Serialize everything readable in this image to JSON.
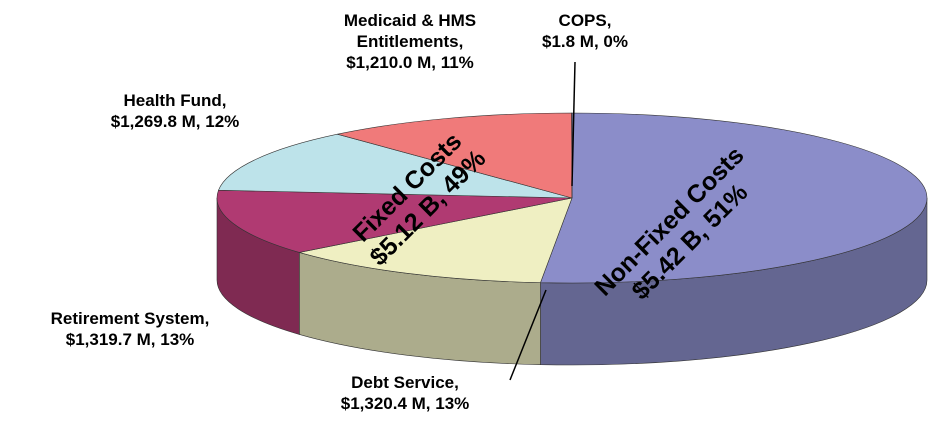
{
  "chart_data": {
    "type": "pie",
    "categories": [
      "Non-Fixed Costs",
      "Debt Service,",
      "Retirement System,",
      "Health Fund,",
      "Medicaid & HMS Entitlements,",
      "COPS,"
    ],
    "values": [
      5420,
      1320.4,
      1319.7,
      1269.8,
      1210.0,
      1.8
    ],
    "value_labels": [
      "$5.42 B, 51%",
      "$1,320.4 M, 13%",
      "$1,319.7 M, 13%",
      "$1,269.8 M, 12%",
      "$1,210.0 M, 11%",
      "$1.8 M, 0%"
    ],
    "colors": [
      "#8b8dc9",
      "#efefc2",
      "#b03a72",
      "#bde3ea",
      "#f07a7a",
      "#000000"
    ],
    "annotations": [
      "Fixed Costs",
      "$5.12 B, 49%"
    ]
  }
}
